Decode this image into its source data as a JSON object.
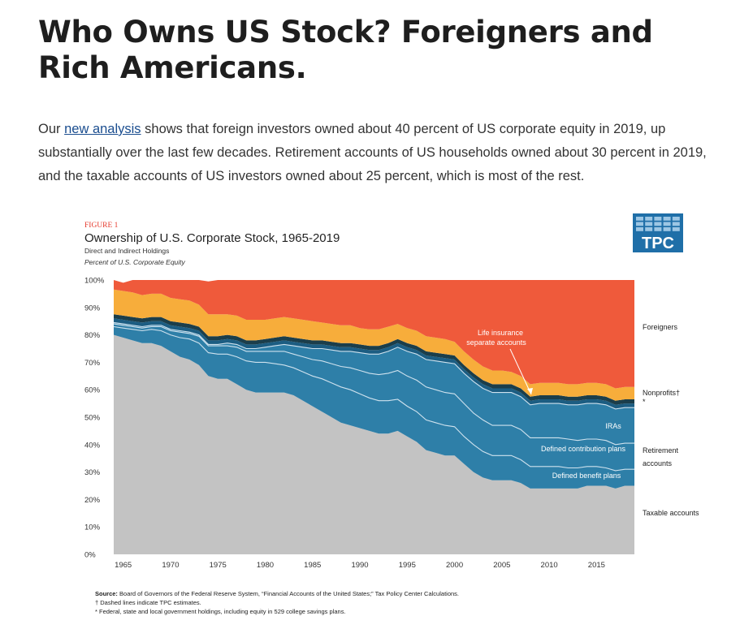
{
  "article": {
    "headline": "Who Owns US Stock? Foreigners and Rich Americans.",
    "intro_link": "new analysis",
    "intro_before": "Our ",
    "intro_after": " shows that foreign investors owned about 40 percent of US corporate equity in 2019, up substantially over the last few decades. Retirement accounts of US households owned about 30 percent in 2019, and the taxable accounts of US investors owned about 25 percent, which is most of the rest."
  },
  "figure": {
    "label": "FIGURE 1",
    "logo_text": "TPC",
    "logo_color": "#1f6fa8"
  },
  "chart_data": {
    "type": "area",
    "stacked": true,
    "title": "Ownership of U.S. Corporate Stock, 1965-2019",
    "subtitle": "Direct and Indirect Holdings",
    "unit_label": "Percent of U.S. Corporate Equity",
    "xlim": [
      1964,
      2019
    ],
    "ylim": [
      0,
      100
    ],
    "y_ticks": [
      0,
      10,
      20,
      30,
      40,
      50,
      60,
      70,
      80,
      90,
      100
    ],
    "y_tick_labels": [
      "0%",
      "10%",
      "20%",
      "30%",
      "40%",
      "50%",
      "60%",
      "70%",
      "80%",
      "90%",
      "100%"
    ],
    "x_ticks": [
      1965,
      1970,
      1975,
      1980,
      1985,
      1990,
      1995,
      2000,
      2005,
      2010,
      2015
    ],
    "x_tick_labels": [
      "1965",
      "1970",
      "1975",
      "1980",
      "1985",
      "1990",
      "1995",
      "2000",
      "2005",
      "2010",
      "2015"
    ],
    "x": [
      1964,
      1965,
      1966,
      1967,
      1968,
      1969,
      1970,
      1971,
      1972,
      1973,
      1974,
      1975,
      1976,
      1977,
      1978,
      1979,
      1980,
      1981,
      1982,
      1983,
      1984,
      1985,
      1986,
      1987,
      1988,
      1989,
      1990,
      1991,
      1992,
      1993,
      1994,
      1995,
      1996,
      1997,
      1998,
      1999,
      2000,
      2001,
      2002,
      2003,
      2004,
      2005,
      2006,
      2007,
      2008,
      2009,
      2010,
      2011,
      2012,
      2013,
      2014,
      2015,
      2016,
      2017,
      2018,
      2019
    ],
    "colors": {
      "taxable": "#c3c3c3",
      "retirement": "#2e7fa8",
      "life_insurance": "#1c5d82",
      "nonprofits": "#1b3e4b",
      "other": "#f7ad3b",
      "foreigners": "#ef5a3b",
      "dividers": "#cfe2ee"
    },
    "series": [
      {
        "key": "taxable",
        "values": [
          80,
          79,
          78,
          77,
          77,
          76,
          74,
          72,
          71,
          69,
          65,
          64,
          64,
          62,
          60,
          59,
          59,
          59,
          59,
          58,
          56,
          54,
          52,
          50,
          48,
          47,
          46,
          45,
          44,
          44,
          45,
          43,
          41,
          38,
          37,
          36,
          36,
          33,
          30,
          28,
          27,
          27,
          27,
          26,
          24,
          24,
          24,
          24,
          24,
          24,
          25,
          25,
          25,
          24,
          25,
          25
        ]
      },
      {
        "key": "defined_benefit",
        "values": [
          3,
          3.5,
          4,
          4.5,
          5,
          5.5,
          6,
          7,
          7.5,
          8,
          8.5,
          9,
          9,
          10,
          10.5,
          11,
          11,
          10.5,
          10,
          10,
          10.5,
          11,
          12,
          12.5,
          13,
          13,
          12.5,
          12,
          12,
          12,
          11.5,
          11,
          11,
          11,
          11,
          11,
          10.5,
          10,
          10,
          9.5,
          9,
          9,
          9,
          8.5,
          8,
          8,
          8,
          8,
          7.5,
          7.5,
          7,
          7,
          6.5,
          6.5,
          6,
          6
        ]
      },
      {
        "key": "defined_contribution",
        "values": [
          1,
          1,
          1,
          1,
          1,
          1.5,
          1.5,
          2,
          2,
          2.5,
          2.5,
          3,
          3,
          3.5,
          3.5,
          4,
          4,
          4.5,
          5,
          5,
          5.5,
          6,
          6.5,
          7,
          7.5,
          8,
          8.5,
          9,
          9.5,
          10,
          10.5,
          11,
          11.5,
          12,
          12,
          12,
          12,
          12,
          11.5,
          11.5,
          11,
          11,
          11,
          11,
          10.5,
          10.5,
          10.5,
          10.5,
          10.5,
          10,
          10,
          10,
          10,
          9.5,
          9.5,
          9.5
        ]
      },
      {
        "key": "iras",
        "values": [
          0.5,
          0.5,
          0.5,
          0.5,
          0.5,
          0.5,
          0.5,
          0.5,
          0.5,
          0.5,
          0.5,
          0.5,
          1,
          1,
          1,
          1,
          1.5,
          2,
          2.5,
          3,
          3.5,
          4,
          4.5,
          5,
          5.5,
          6,
          6.5,
          7,
          7.5,
          8,
          8.5,
          9,
          9.5,
          10,
          10.5,
          11,
          11,
          11,
          11.5,
          11.5,
          12,
          12,
          12,
          12,
          12,
          12.5,
          12.5,
          12.5,
          12.5,
          13,
          13,
          13,
          13,
          13,
          13,
          13
        ]
      },
      {
        "key": "life_insurance",
        "values": [
          1.5,
          1.5,
          1.5,
          1.5,
          1.5,
          1.5,
          1.5,
          1.5,
          1.5,
          1.5,
          1.5,
          1.5,
          1.5,
          1.5,
          1.5,
          1.5,
          1.5,
          1.5,
          1.5,
          1.5,
          1.5,
          1.5,
          1.5,
          1.5,
          1.5,
          1.5,
          1.5,
          1.5,
          1.5,
          1.5,
          1.5,
          1.5,
          1.5,
          1.5,
          1.5,
          1.5,
          1.5,
          1.5,
          1.5,
          1.5,
          1.5,
          1.5,
          1.5,
          1.5,
          1.5,
          1.5,
          1.5,
          1.5,
          1.5,
          1.5,
          1.5,
          1.5,
          1.5,
          1.5,
          1.5,
          1.5
        ]
      },
      {
        "key": "nonprofits",
        "values": [
          1.5,
          1.5,
          1.5,
          1.5,
          1.5,
          1.5,
          1.5,
          1.5,
          1.5,
          1.5,
          1.5,
          1.5,
          1.5,
          1.5,
          1.5,
          1.5,
          1.5,
          1.5,
          1.5,
          1.5,
          1.5,
          1.5,
          1.5,
          1.5,
          1.5,
          1.5,
          1.5,
          1.5,
          1.5,
          1.5,
          1.5,
          1.5,
          1.5,
          1.5,
          1.5,
          1.5,
          1.5,
          1.5,
          1.5,
          1.5,
          1.5,
          1.5,
          1.5,
          1.5,
          1.5,
          1.5,
          1.5,
          1.5,
          1.5,
          1.5,
          1.5,
          1.5,
          1.5,
          1.5,
          1.5,
          1.5
        ]
      },
      {
        "key": "other",
        "values": [
          9,
          9,
          9,
          8.5,
          8.5,
          8.5,
          8.5,
          8.5,
          8.5,
          8,
          8,
          8,
          7.5,
          7.5,
          7.5,
          7.5,
          7,
          7,
          7,
          7,
          7,
          7,
          6.5,
          6.5,
          6.5,
          6.5,
          6,
          6,
          6,
          6,
          5.5,
          5.5,
          5.5,
          5.5,
          5.5,
          5.5,
          5,
          5,
          5,
          5,
          5,
          5,
          4.5,
          4.5,
          4.5,
          4.5,
          4.5,
          4.5,
          4.5,
          4.5,
          4.5,
          4.5,
          4.5,
          4.5,
          4.5,
          4.5
        ]
      },
      {
        "key": "foreigners",
        "values": [
          3.5,
          3,
          4.5,
          5.5,
          5,
          5.5,
          6.5,
          7,
          7.5,
          9,
          12,
          13,
          12.5,
          13.5,
          14.5,
          14.5,
          15.5,
          15.5,
          15,
          15,
          15,
          15.5,
          16,
          16.5,
          17,
          17,
          18.5,
          19,
          19,
          18,
          17,
          17.5,
          18.5,
          20.5,
          21.5,
          22.5,
          23.5,
          26.5,
          29,
          31.5,
          33.5,
          34,
          34.5,
          36,
          39.5,
          39.5,
          39.5,
          39.5,
          40,
          40,
          39.5,
          39.5,
          40,
          41.5,
          41,
          41
        ]
      }
    ],
    "annotations": {
      "life_insurance": "Life insurance separate accounts",
      "iras": "IRAs",
      "defined_contribution": "Defined contribution plans",
      "defined_benefit": "Defined benefit plans"
    },
    "right_labels": {
      "foreigners": "Foreigners",
      "nonprofits": "Nonprofits†",
      "nonprofits_mark": "*",
      "retirement_1": "Retirement",
      "retirement_2": "accounts",
      "taxable": "Taxable accounts"
    }
  },
  "notes": {
    "source_label": "Source:",
    "source_text": " Board of Governors of the Federal Reserve System, “Financial Accounts of the United States;” Tax Policy Center Calculations.",
    "note1": "† Dashed lines indicate TPC estimates.",
    "note2": "* Federal, state and local government holdings, including equity in 529 college savings plans."
  }
}
